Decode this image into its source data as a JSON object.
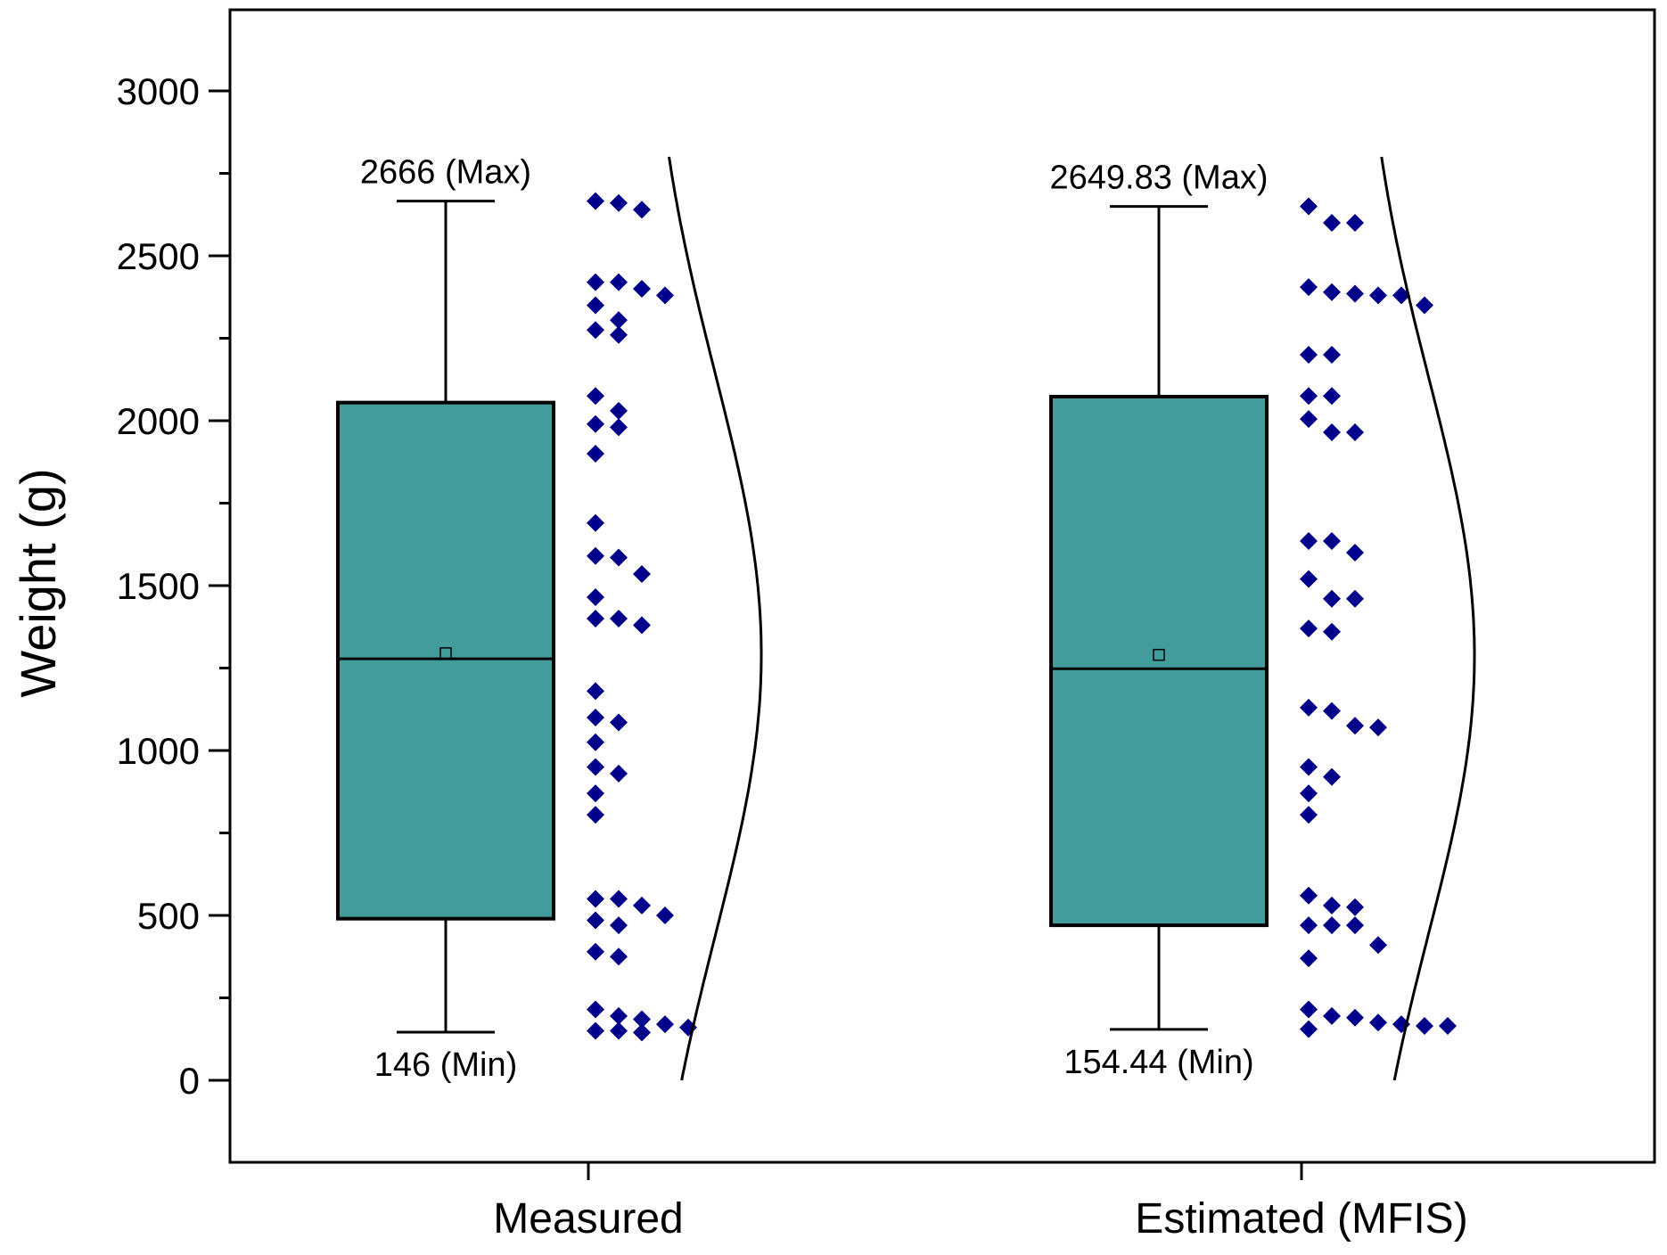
{
  "chart_data": {
    "type": "box",
    "ylabel": "Weight (g)",
    "ylim": [
      -250,
      3250
    ],
    "yticks": [
      0,
      500,
      1000,
      1500,
      2000,
      2500,
      3000
    ],
    "ytick_labels": [
      "0",
      "500",
      "1000",
      "1500",
      "2000",
      "2500",
      "3000"
    ],
    "box_color": "#419c9b",
    "point_color": "#00008b",
    "series": [
      {
        "name": "Measured",
        "min": 146,
        "q1": 490,
        "median": 1278,
        "q3": 2055,
        "max": 2666,
        "mean": 1295,
        "max_label": "2666 (Max)",
        "min_label": "146 (Min)",
        "points": [
          2666,
          2660,
          2640,
          2420,
          2420,
          2400,
          2380,
          2350,
          2305,
          2275,
          2260,
          2075,
          2030,
          1990,
          1980,
          1900,
          1690,
          1590,
          1585,
          1535,
          1465,
          1400,
          1400,
          1380,
          1180,
          1100,
          1085,
          1025,
          950,
          930,
          870,
          805,
          550,
          550,
          530,
          500,
          485,
          470,
          390,
          375,
          215,
          195,
          185,
          170,
          160,
          150,
          150,
          145
        ]
      },
      {
        "name": "Estimated (MFIS)",
        "min": 154.44,
        "q1": 470,
        "median": 1248,
        "q3": 2073,
        "max": 2649.83,
        "mean": 1290,
        "max_label": "2649.83 (Max)",
        "min_label": "154.44 (Min)",
        "points": [
          2650,
          2600,
          2600,
          2405,
          2390,
          2385,
          2380,
          2380,
          2350,
          2200,
          2200,
          2075,
          2075,
          2005,
          1965,
          1965,
          1635,
          1635,
          1600,
          1520,
          1460,
          1460,
          1370,
          1360,
          1130,
          1120,
          1075,
          1070,
          950,
          920,
          870,
          805,
          560,
          530,
          525,
          470,
          470,
          470,
          410,
          370,
          215,
          195,
          190,
          175,
          170,
          165,
          165,
          155
        ]
      }
    ]
  }
}
